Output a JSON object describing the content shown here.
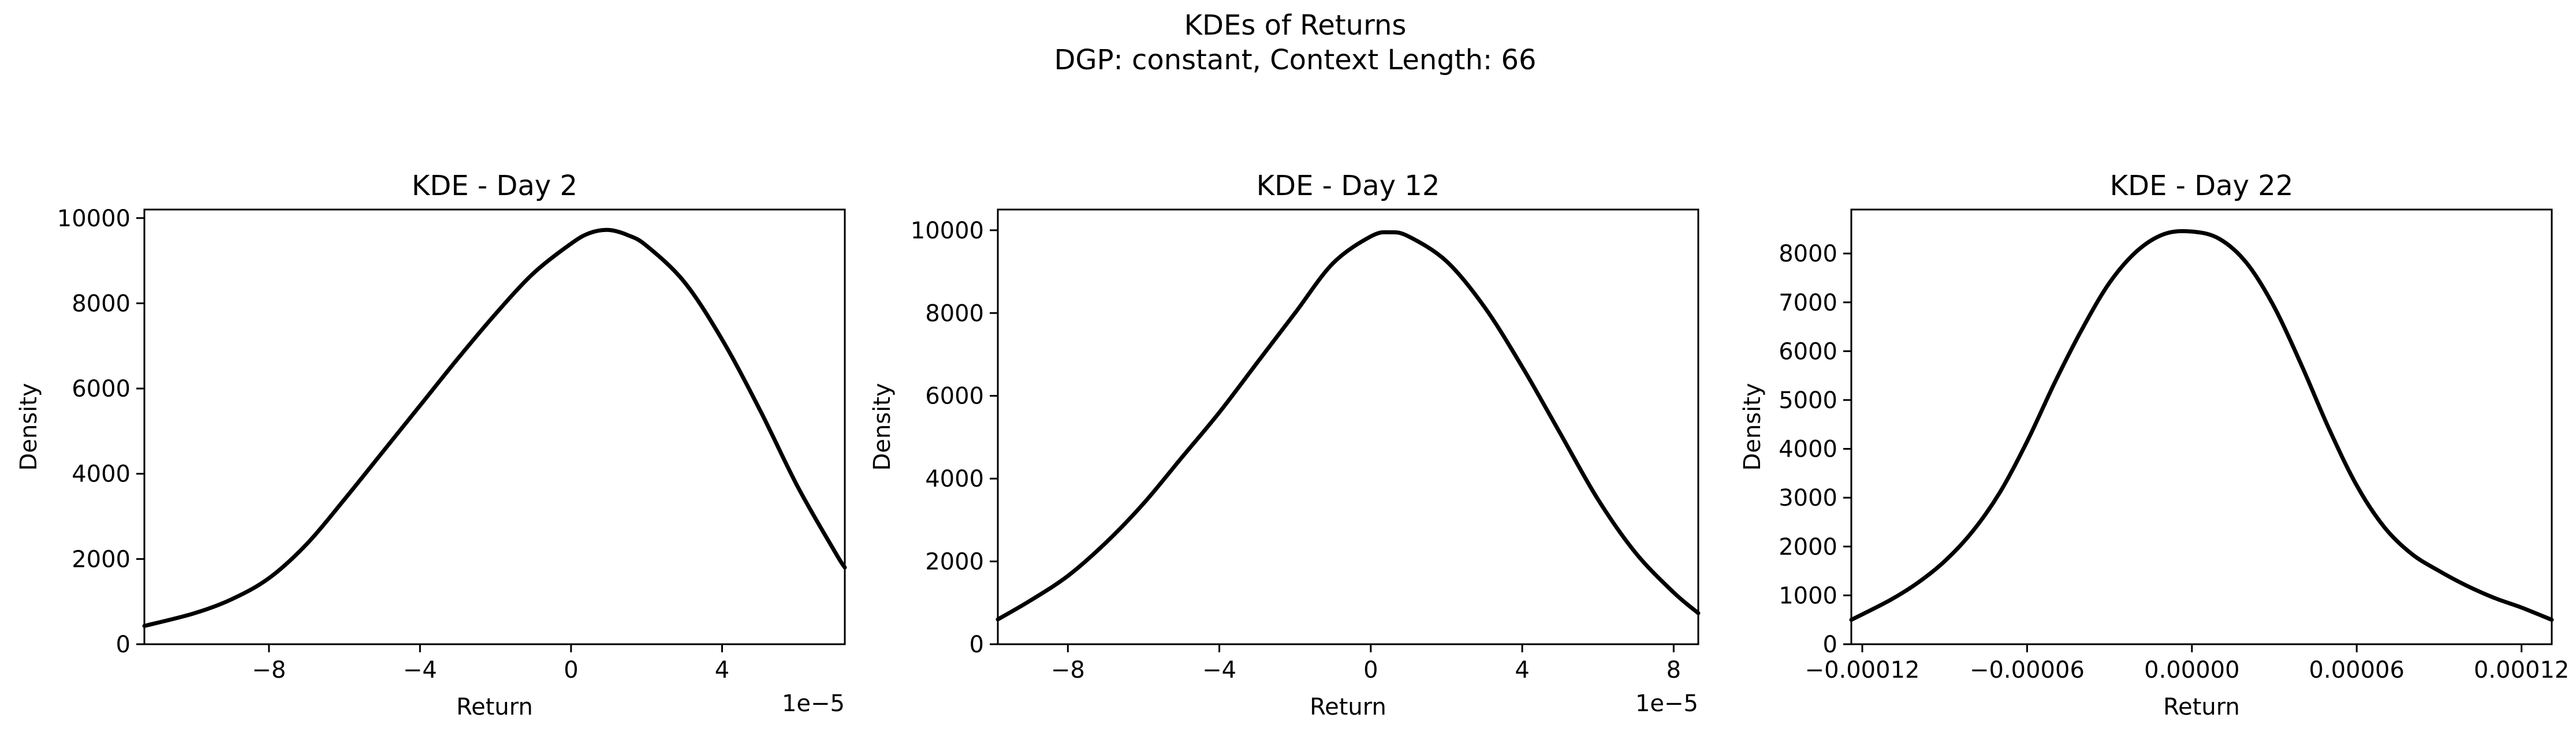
{
  "figure": {
    "title_line1": "KDEs of Returns",
    "title_line2": "DGP: constant, Context Length: 66"
  },
  "chart_data": [
    {
      "type": "line",
      "title": "KDE - Day 2",
      "xlabel": "Return",
      "ylabel": "Density",
      "offset_text": "1e−5",
      "xlim": [
        -0.000113,
        7.25e-05
      ],
      "ylim": [
        0,
        10200
      ],
      "xticks": [
        -8e-05,
        -4e-05,
        0,
        4e-05
      ],
      "xtick_labels": [
        "−8",
        "−4",
        "0",
        "4"
      ],
      "yticks": [
        0,
        2000,
        4000,
        6000,
        8000,
        10000
      ],
      "ytick_labels": [
        "0",
        "2000",
        "4000",
        "6000",
        "8000",
        "10000"
      ],
      "grid": false,
      "series": [
        {
          "color": "#000000",
          "x": [
            -0.000113,
            -0.0001,
            -9e-05,
            -8e-05,
            -7e-05,
            -6e-05,
            -5e-05,
            -4e-05,
            -3e-05,
            -2e-05,
            -1e-05,
            0,
            5e-06,
            1e-05,
            1.5e-05,
            2e-05,
            3e-05,
            4e-05,
            5e-05,
            6e-05,
            7e-05,
            7.25e-05
          ],
          "y": [
            430,
            720,
            1050,
            1550,
            2350,
            3400,
            4500,
            5600,
            6700,
            7750,
            8700,
            9400,
            9650,
            9720,
            9600,
            9350,
            8500,
            7150,
            5500,
            3700,
            2150,
            1800
          ]
        }
      ]
    },
    {
      "type": "line",
      "title": "KDE - Day 12",
      "xlabel": "Return",
      "ylabel": "Density",
      "offset_text": "1e−5",
      "xlim": [
        -9.85e-05,
        8.65e-05
      ],
      "ylim": [
        0,
        10500
      ],
      "xticks": [
        -8e-05,
        -4e-05,
        0,
        4e-05,
        8e-05
      ],
      "xtick_labels": [
        "−8",
        "−4",
        "0",
        "4",
        "8"
      ],
      "yticks": [
        0,
        2000,
        4000,
        6000,
        8000,
        10000
      ],
      "ytick_labels": [
        "0",
        "2000",
        "4000",
        "6000",
        "8000",
        "10000"
      ],
      "grid": false,
      "series": [
        {
          "color": "#000000",
          "x": [
            -9.85e-05,
            -9e-05,
            -8e-05,
            -7e-05,
            -6e-05,
            -5e-05,
            -4e-05,
            -3e-05,
            -2e-05,
            -1e-05,
            0,
            5e-06,
            1e-05,
            2e-05,
            3e-05,
            4e-05,
            5e-05,
            6e-05,
            7e-05,
            8e-05,
            8.65e-05
          ],
          "y": [
            600,
            1050,
            1650,
            2450,
            3400,
            4500,
            5600,
            6800,
            8000,
            9200,
            9850,
            9950,
            9850,
            9250,
            8150,
            6700,
            5100,
            3500,
            2200,
            1250,
            750
          ]
        }
      ]
    },
    {
      "type": "line",
      "title": "KDE - Day 22",
      "xlabel": "Return",
      "ylabel": "Density",
      "offset_text": "",
      "xlim": [
        -0.000124,
        0.000131
      ],
      "ylim": [
        0,
        8900
      ],
      "xticks": [
        -0.00012,
        -6e-05,
        0,
        6e-05,
        0.00012
      ],
      "xtick_labels": [
        "−0.00012",
        "−0.00006",
        "0.00000",
        "0.00006",
        "0.00012"
      ],
      "yticks": [
        0,
        1000,
        2000,
        3000,
        4000,
        5000,
        6000,
        7000,
        8000
      ],
      "ytick_labels": [
        "0",
        "1000",
        "2000",
        "3000",
        "4000",
        "5000",
        "6000",
        "7000",
        "8000"
      ],
      "grid": false,
      "series": [
        {
          "color": "#000000",
          "x": [
            -0.000124,
            -0.00011,
            -0.0001,
            -9e-05,
            -8e-05,
            -7e-05,
            -6e-05,
            -5e-05,
            -4e-05,
            -3e-05,
            -2e-05,
            -1e-05,
            0,
            1e-05,
            2e-05,
            3e-05,
            4e-05,
            5e-05,
            6e-05,
            7e-05,
            8e-05,
            9e-05,
            0.0001,
            0.00011,
            0.00012,
            0.000131
          ],
          "y": [
            500,
            900,
            1250,
            1700,
            2300,
            3100,
            4150,
            5350,
            6450,
            7400,
            8050,
            8400,
            8450,
            8300,
            7800,
            6900,
            5700,
            4400,
            3250,
            2400,
            1850,
            1500,
            1200,
            950,
            750,
            500
          ]
        }
      ]
    }
  ]
}
